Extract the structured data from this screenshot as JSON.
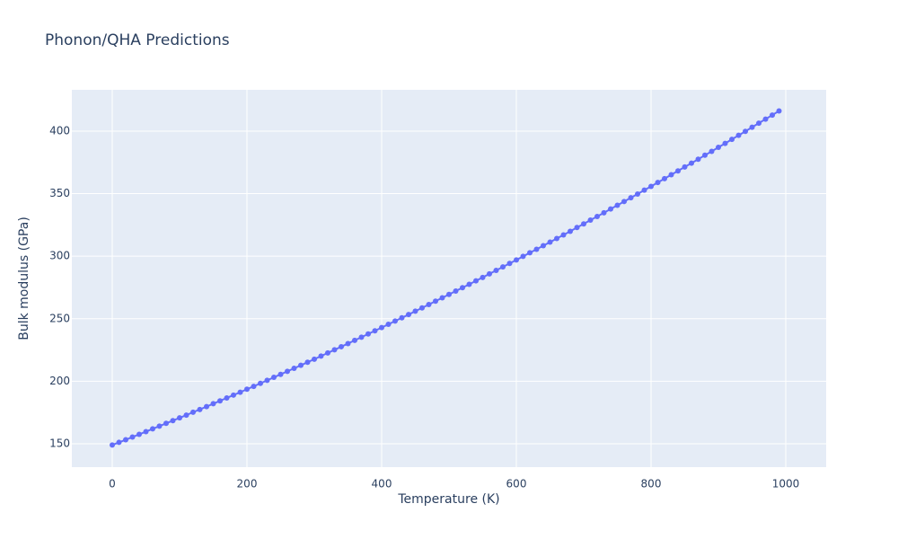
{
  "chart_data": {
    "type": "line",
    "title": "Phonon/QHA Predictions",
    "x_label": "Temperature (K)",
    "y_label": "Bulk modulus (GPa)",
    "color": "#636efa",
    "grid": true,
    "markers": true,
    "xlim": [
      -60,
      1060
    ],
    "ylim": [
      131.3,
      433
    ],
    "xticks": [
      0,
      200,
      400,
      600,
      800,
      1000
    ],
    "yticks": [
      150,
      200,
      250,
      300,
      350,
      400
    ],
    "x": [
      0,
      10,
      20,
      30,
      40,
      50,
      60,
      70,
      80,
      90,
      100,
      110,
      120,
      130,
      140,
      150,
      160,
      170,
      180,
      190,
      200,
      210,
      220,
      230,
      240,
      250,
      260,
      270,
      280,
      290,
      300,
      310,
      320,
      330,
      340,
      350,
      360,
      370,
      380,
      390,
      400,
      410,
      420,
      430,
      440,
      450,
      460,
      470,
      480,
      490,
      500,
      510,
      520,
      530,
      540,
      550,
      560,
      570,
      580,
      590,
      600,
      610,
      620,
      630,
      640,
      650,
      660,
      670,
      680,
      690,
      700,
      710,
      720,
      730,
      740,
      750,
      760,
      770,
      780,
      790,
      800,
      810,
      820,
      830,
      840,
      850,
      860,
      870,
      880,
      890,
      900,
      910,
      920,
      930,
      940,
      950,
      960,
      970,
      980,
      990
    ],
    "values": [
      149.0,
      151.1,
      153.2,
      155.4,
      157.5,
      159.7,
      161.9,
      164.1,
      166.3,
      168.5,
      170.7,
      172.9,
      175.2,
      177.4,
      179.7,
      182.0,
      184.3,
      186.6,
      188.9,
      191.2,
      193.6,
      195.9,
      198.3,
      200.7,
      203.1,
      205.5,
      207.9,
      210.3,
      212.7,
      215.2,
      217.6,
      220.1,
      222.6,
      225.1,
      227.6,
      230.1,
      232.7,
      235.2,
      237.8,
      240.3,
      242.9,
      245.5,
      248.1,
      250.7,
      253.3,
      256.0,
      258.6,
      261.3,
      264.0,
      266.7,
      269.4,
      272.1,
      274.8,
      277.5,
      280.3,
      283.0,
      285.8,
      288.6,
      291.4,
      294.2,
      297.0,
      299.8,
      302.7,
      305.5,
      308.4,
      311.2,
      314.1,
      317.0,
      319.9,
      322.9,
      325.8,
      328.8,
      331.7,
      334.7,
      337.7,
      340.7,
      343.7,
      346.7,
      349.7,
      352.8,
      355.8,
      358.9,
      362.0,
      365.1,
      368.2,
      371.3,
      374.4,
      377.5,
      380.7,
      383.8,
      387.0,
      390.2,
      393.4,
      396.6,
      399.8,
      403.1,
      406.3,
      409.6,
      412.8,
      416.1
    ]
  }
}
